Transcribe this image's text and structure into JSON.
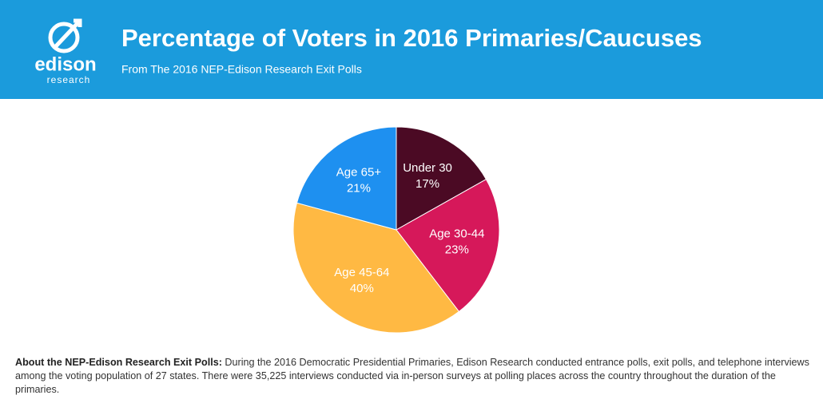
{
  "logo": {
    "name": "edison",
    "sub": "research"
  },
  "chart_data": {
    "type": "pie",
    "title": "Percentage of Voters in 2016 Primaries/Caucuses",
    "subtitle": "From The 2016 NEP-Edison Research Exit Polls",
    "categories": [
      "Under 30",
      "Age 30-44",
      "Age 45-64",
      "Age 65+"
    ],
    "values": [
      17,
      23,
      40,
      21
    ],
    "value_labels": [
      "17%",
      "23%",
      "40%",
      "21%"
    ],
    "colors": [
      "#4b0a24",
      "#d6185a",
      "#ffb943",
      "#1e90f0"
    ]
  },
  "footnote": {
    "label": "About the NEP-Edison Research Exit Polls:",
    "text": "During the 2016 Democratic Presidential Primaries, Edison Research conducted entrance polls, exit polls, and telephone interviews among the voting population of 27 states. There were 35,225 interviews conducted via in-person surveys at polling places across the country throughout the duration of the primaries."
  }
}
